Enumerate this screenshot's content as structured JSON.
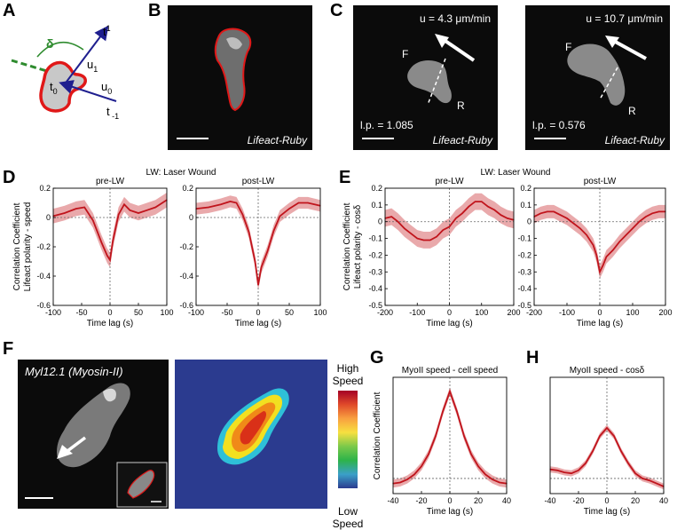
{
  "panel_labels": [
    "A",
    "B",
    "C",
    "D",
    "E",
    "F",
    "G",
    "H"
  ],
  "panel_a": {
    "delta": "δ",
    "t1": "t",
    "t1_sub": "1",
    "u1": "u",
    "u1_sub": "1",
    "t0": "t",
    "t0_sub": "0",
    "u0": "u",
    "u0_sub": "0",
    "tm1": "t",
    "tm1_sub": " -1"
  },
  "panel_b": {
    "label": "Lifeact-Ruby"
  },
  "panel_c": {
    "left": {
      "speed": "u = 4.3 μm/min",
      "front": "F",
      "rear": "R",
      "lp": "l.p. = 1.085",
      "label": "Lifeact-Ruby"
    },
    "right": {
      "speed": "u = 10.7 μm/min",
      "front": "F",
      "rear": "R",
      "lp": "l.p. = 0.576",
      "label": "Lifeact-Ruby"
    }
  },
  "panel_f": {
    "micro_label": "Myl12.1 (Myosin-II)",
    "colorbar_top": [
      "High",
      "Speed"
    ],
    "colorbar_bottom": [
      "Low",
      "Speed"
    ],
    "colors": {
      "high": "#a50026",
      "mid": "#2db34a",
      "low": "#2b3b8f"
    }
  },
  "colors": {
    "line": "#c0141c",
    "band": "#e59a9c"
  },
  "chart_data": [
    {
      "id": "D",
      "type": "line",
      "supertitle": "LW: Laser Wound",
      "ylabel_lines": [
        "Correlation Coefficient",
        "Lifeact polarity - speed"
      ],
      "ylim": [
        -0.6,
        0.2
      ],
      "yticks": [
        -0.6,
        -0.4,
        -0.2,
        0,
        0.2
      ],
      "yticklabels": [
        "-0.6",
        "-0.4",
        "-0.2",
        "0",
        "0.2"
      ],
      "subplots": [
        {
          "title": "pre-LW",
          "xlabel": "Time lag (s)",
          "xlim": [
            -100,
            100
          ],
          "xticks": [
            -100,
            -50,
            0,
            50,
            100
          ],
          "xticklabels": [
            "-100",
            "-50",
            "0",
            "50",
            "100"
          ],
          "x": [
            -100,
            -80,
            -60,
            -45,
            -30,
            -15,
            -5,
            0,
            5,
            15,
            25,
            35,
            50,
            65,
            80,
            100
          ],
          "y": [
            0.01,
            0.03,
            0.06,
            0.07,
            -0.02,
            -0.17,
            -0.26,
            -0.29,
            -0.16,
            0.02,
            0.09,
            0.05,
            0.03,
            0.05,
            0.07,
            0.12
          ],
          "err": 0.05
        },
        {
          "title": "post-LW",
          "xlabel": "Time lag (s)",
          "xlim": [
            -100,
            100
          ],
          "xticks": [
            -100,
            -50,
            0,
            50,
            100
          ],
          "xticklabels": [
            "-100",
            "-50",
            "0",
            "50",
            "100"
          ],
          "x": [
            -100,
            -80,
            -60,
            -45,
            -35,
            -25,
            -15,
            -5,
            0,
            5,
            15,
            25,
            35,
            50,
            65,
            80,
            100
          ],
          "y": [
            0.06,
            0.07,
            0.09,
            0.11,
            0.1,
            0.02,
            -0.1,
            -0.3,
            -0.46,
            -0.34,
            -0.23,
            -0.09,
            0.01,
            0.06,
            0.1,
            0.1,
            0.08
          ],
          "err": 0.04
        }
      ]
    },
    {
      "id": "E",
      "type": "line",
      "supertitle": "LW: Laser Wound",
      "ylabel_lines": [
        "Correlation Coefficient",
        "Lifeact polarity - cosδ"
      ],
      "ylim": [
        -0.5,
        0.2
      ],
      "yticks": [
        -0.5,
        -0.4,
        -0.3,
        -0.2,
        -0.1,
        0,
        0.1,
        0.2
      ],
      "yticklabels": [
        "-0.5",
        "-0.4",
        "-0.3",
        "-0.2",
        "-0.1",
        "0",
        "0.1",
        "0.2"
      ],
      "subplots": [
        {
          "title": "pre-LW",
          "xlabel": "Time lag (s)",
          "xlim": [
            -200,
            200
          ],
          "xticks": [
            -200,
            -100,
            0,
            100,
            200
          ],
          "xticklabels": [
            "-200",
            "-100",
            "0",
            "100",
            "200"
          ],
          "x": [
            -200,
            -180,
            -160,
            -140,
            -120,
            -100,
            -80,
            -60,
            -40,
            -20,
            0,
            20,
            40,
            60,
            80,
            100,
            120,
            140,
            160,
            180,
            200
          ],
          "y": [
            0.02,
            0.03,
            0.0,
            -0.04,
            -0.07,
            -0.1,
            -0.11,
            -0.11,
            -0.09,
            -0.05,
            -0.03,
            0.02,
            0.05,
            0.09,
            0.12,
            0.12,
            0.09,
            0.07,
            0.04,
            0.02,
            0.01
          ],
          "err": 0.05
        },
        {
          "title": "post-LW",
          "xlabel": "Time lag (s)",
          "xlim": [
            -200,
            200
          ],
          "xticks": [
            -200,
            -100,
            0,
            100,
            200
          ],
          "xticklabels": [
            "-200",
            "-100",
            "0",
            "100",
            "200"
          ],
          "x": [
            -200,
            -180,
            -160,
            -140,
            -120,
            -100,
            -80,
            -60,
            -40,
            -20,
            -10,
            0,
            10,
            20,
            40,
            60,
            80,
            100,
            120,
            140,
            160,
            180,
            200
          ],
          "y": [
            0.03,
            0.05,
            0.06,
            0.06,
            0.04,
            0.02,
            -0.01,
            -0.04,
            -0.08,
            -0.14,
            -0.2,
            -0.3,
            -0.26,
            -0.21,
            -0.17,
            -0.12,
            -0.08,
            -0.04,
            0.0,
            0.03,
            0.05,
            0.06,
            0.06
          ],
          "err": 0.04
        }
      ]
    },
    {
      "id": "G",
      "type": "line",
      "title": "MyoII speed - cell speed",
      "ylabel": "Correlation Coefficient",
      "xlabel": "Time lag (s)",
      "xlim": [
        -40,
        40
      ],
      "xticks": [
        -40,
        -20,
        0,
        20,
        40
      ],
      "xticklabels": [
        "-40",
        "-20",
        "0",
        "20",
        "40"
      ],
      "ylim": [
        -0.15,
        1.0
      ],
      "x": [
        -40,
        -35,
        -30,
        -25,
        -20,
        -15,
        -10,
        -5,
        0,
        5,
        10,
        15,
        20,
        25,
        30,
        35,
        40
      ],
      "y": [
        -0.05,
        -0.04,
        -0.01,
        0.04,
        0.12,
        0.24,
        0.42,
        0.66,
        0.86,
        0.66,
        0.42,
        0.24,
        0.12,
        0.04,
        -0.01,
        -0.04,
        -0.05
      ],
      "err": 0.04
    },
    {
      "id": "H",
      "type": "line",
      "title": "MyoII speed - cosδ",
      "xlabel": "Time lag (s)",
      "xlim": [
        -40,
        40
      ],
      "xticks": [
        -40,
        -20,
        0,
        20,
        40
      ],
      "xticklabels": [
        "-40",
        "-20",
        "0",
        "20",
        "40"
      ],
      "ylim": [
        -0.15,
        1.0
      ],
      "x": [
        -40,
        -35,
        -30,
        -25,
        -20,
        -15,
        -10,
        -5,
        0,
        5,
        10,
        15,
        20,
        25,
        30,
        35,
        40
      ],
      "y": [
        0.09,
        0.08,
        0.06,
        0.05,
        0.08,
        0.15,
        0.27,
        0.42,
        0.5,
        0.42,
        0.27,
        0.15,
        0.05,
        0.0,
        -0.02,
        -0.05,
        -0.08
      ],
      "err": 0.03
    }
  ]
}
